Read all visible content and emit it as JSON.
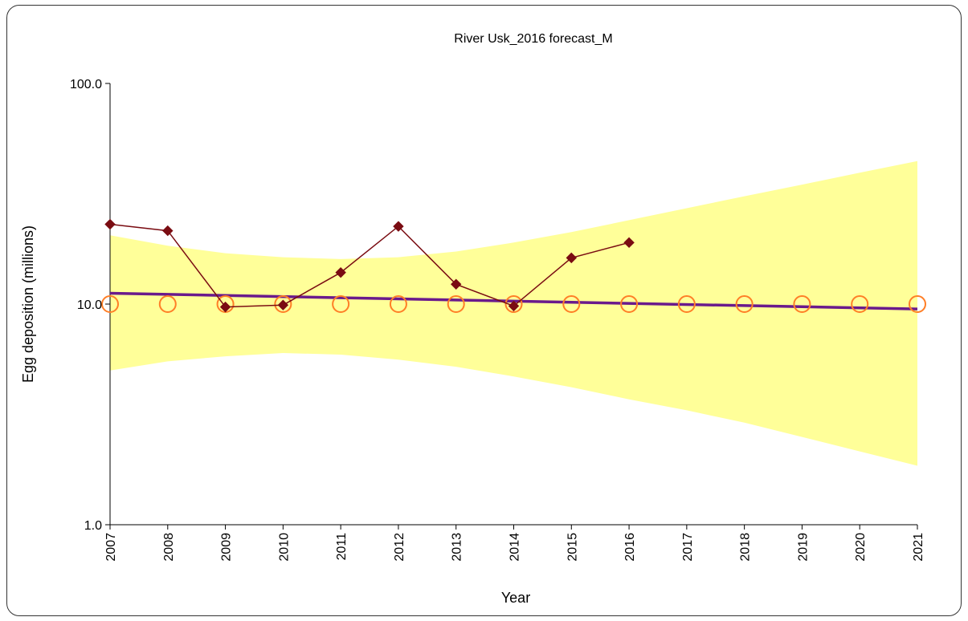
{
  "chart_data": {
    "type": "line",
    "title": "River Usk_2016 forecast_M",
    "xlabel": "Year",
    "ylabel": "Egg deposition (millions)",
    "yscale": "log",
    "ylim": [
      1.0,
      100.0
    ],
    "yticks": [
      "1.0",
      "10.0",
      "100.0"
    ],
    "xlim": [
      2007,
      2021
    ],
    "categories": [
      "2007",
      "2008",
      "2009",
      "2010",
      "2011",
      "2012",
      "2013",
      "2014",
      "2015",
      "2016",
      "2017",
      "2018",
      "2019",
      "2020",
      "2021"
    ],
    "series": [
      {
        "role": "observed",
        "style": "line-diamond",
        "color": "#7a0c12",
        "x": [
          2007,
          2008,
          2009,
          2010,
          2011,
          2012,
          2013,
          2014,
          2015,
          2016
        ],
        "y": [
          23.0,
          21.5,
          9.7,
          9.9,
          13.9,
          22.5,
          12.3,
          9.8,
          16.2,
          19.0
        ]
      },
      {
        "role": "reference",
        "style": "open-circle",
        "color": "#ff7f27",
        "x": [
          2007,
          2008,
          2009,
          2010,
          2011,
          2012,
          2013,
          2014,
          2015,
          2016,
          2017,
          2018,
          2019,
          2020,
          2021
        ],
        "y": [
          10.0,
          10.0,
          10.0,
          10.0,
          10.0,
          10.0,
          10.0,
          10.0,
          10.0,
          10.0,
          10.0,
          10.0,
          10.0,
          10.0,
          10.0
        ]
      },
      {
        "role": "trend",
        "style": "line",
        "color": "#6a1a8c",
        "x": [
          2007,
          2021
        ],
        "y": [
          11.2,
          9.5
        ]
      }
    ],
    "band": {
      "color": "#ffff99",
      "x": [
        2007,
        2008,
        2009,
        2010,
        2011,
        2012,
        2013,
        2014,
        2015,
        2016,
        2017,
        2018,
        2019,
        2020,
        2021
      ],
      "upper": [
        20.5,
        18.4,
        17.0,
        16.3,
        16.0,
        16.3,
        17.3,
        19.0,
        21.2,
        24.0,
        27.2,
        30.8,
        34.8,
        39.4,
        44.5
      ],
      "lower": [
        5.0,
        5.5,
        5.8,
        6.0,
        5.9,
        5.6,
        5.2,
        4.7,
        4.2,
        3.7,
        3.3,
        2.9,
        2.5,
        2.15,
        1.85
      ]
    },
    "grid": false,
    "legend": "none"
  }
}
